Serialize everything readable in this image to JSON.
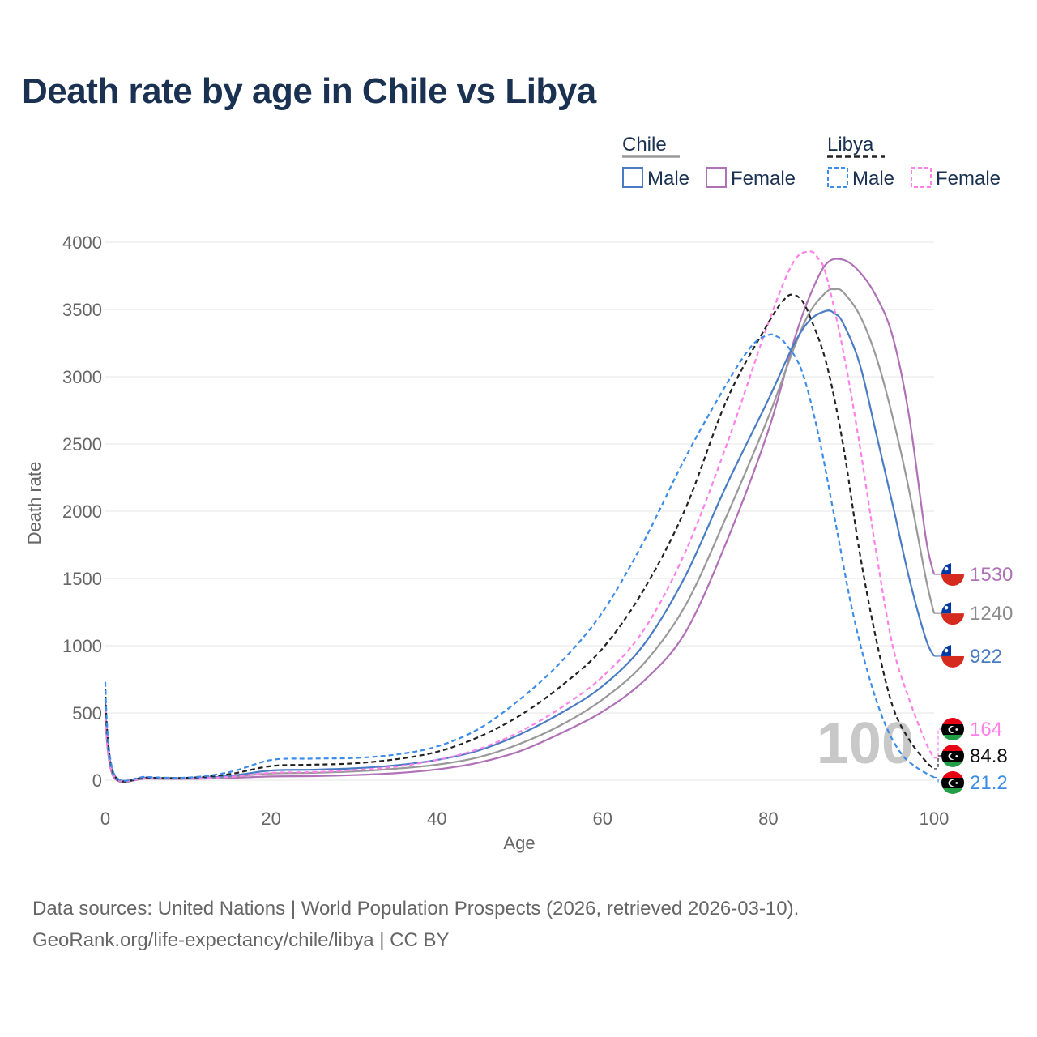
{
  "title": "Death rate by age in Chile vs Libya",
  "source_line1": "Data sources: United Nations | World Population Prospects (2026, retrieved 2026-03-10).",
  "source_line2": "GeoRank.org/life-expectancy/chile/libya | CC BY",
  "colors": {
    "chile_male": "#4a7cc4",
    "chile_female": "#b071b6",
    "chile_total": "#999999",
    "libya_male": "#3d8ce8",
    "libya_female": "#ff80e8",
    "libya_total": "#222222",
    "title": "#1a3152"
  },
  "legend": {
    "groups": [
      {
        "country": "Chile",
        "dash": "solid",
        "total_color": "#999999",
        "items": [
          {
            "label": "Male",
            "color": "#4a7cc4"
          },
          {
            "label": "Female",
            "color": "#b071b6"
          }
        ]
      },
      {
        "country": "Libya",
        "dash": "dashed",
        "total_color": "#222222",
        "items": [
          {
            "label": "Male",
            "color": "#3d8ce8"
          },
          {
            "label": "Female",
            "color": "#ff80e8"
          }
        ]
      }
    ]
  },
  "chart_data": {
    "type": "line",
    "title": "Death rate by age in Chile vs Libya",
    "xlabel": "Age",
    "ylabel": "Death rate",
    "xlim": [
      0,
      100
    ],
    "ylim": [
      0,
      4000
    ],
    "xticks": [
      0,
      20,
      40,
      60,
      80,
      100
    ],
    "yticks": [
      0,
      500,
      1000,
      1500,
      2000,
      2500,
      3000,
      3500,
      4000
    ],
    "grid": true,
    "watermark": "100",
    "series": [
      {
        "name": "Chile Female",
        "country": "Chile",
        "sex": "Female",
        "color": "#b071b6",
        "dash": "solid",
        "end_label": "1530",
        "flag": "chile",
        "points": [
          [
            0,
            500
          ],
          [
            1,
            25
          ],
          [
            5,
            12
          ],
          [
            10,
            10
          ],
          [
            15,
            16
          ],
          [
            20,
            28
          ],
          [
            25,
            30
          ],
          [
            30,
            38
          ],
          [
            35,
            52
          ],
          [
            40,
            80
          ],
          [
            45,
            130
          ],
          [
            50,
            215
          ],
          [
            55,
            350
          ],
          [
            60,
            510
          ],
          [
            65,
            740
          ],
          [
            70,
            1100
          ],
          [
            75,
            1780
          ],
          [
            80,
            2600
          ],
          [
            83,
            3250
          ],
          [
            85,
            3600
          ],
          [
            87,
            3840
          ],
          [
            89,
            3870
          ],
          [
            91,
            3780
          ],
          [
            93,
            3600
          ],
          [
            95,
            3300
          ],
          [
            97,
            2700
          ],
          [
            99,
            1800
          ],
          [
            100,
            1530
          ]
        ]
      },
      {
        "name": "Chile (both)",
        "country": "Chile",
        "sex": "Total",
        "color": "#999999",
        "dash": "solid",
        "end_label": "1240",
        "flag": "chile",
        "points": [
          [
            0,
            550
          ],
          [
            1,
            35
          ],
          [
            5,
            14
          ],
          [
            10,
            12
          ],
          [
            15,
            25
          ],
          [
            20,
            50
          ],
          [
            25,
            55
          ],
          [
            30,
            65
          ],
          [
            35,
            85
          ],
          [
            40,
            115
          ],
          [
            45,
            170
          ],
          [
            50,
            270
          ],
          [
            55,
            410
          ],
          [
            60,
            600
          ],
          [
            65,
            870
          ],
          [
            70,
            1300
          ],
          [
            75,
            1970
          ],
          [
            80,
            2700
          ],
          [
            83,
            3200
          ],
          [
            85,
            3480
          ],
          [
            87,
            3630
          ],
          [
            88,
            3650
          ],
          [
            89,
            3630
          ],
          [
            91,
            3460
          ],
          [
            93,
            3150
          ],
          [
            95,
            2700
          ],
          [
            97,
            2150
          ],
          [
            99,
            1500
          ],
          [
            100,
            1240
          ]
        ]
      },
      {
        "name": "Chile Male",
        "country": "Chile",
        "sex": "Male",
        "color": "#4a7cc4",
        "dash": "solid",
        "end_label": "922",
        "flag": "chile",
        "points": [
          [
            0,
            600
          ],
          [
            1,
            45
          ],
          [
            5,
            18
          ],
          [
            10,
            14
          ],
          [
            15,
            32
          ],
          [
            20,
            72
          ],
          [
            25,
            78
          ],
          [
            30,
            88
          ],
          [
            35,
            110
          ],
          [
            40,
            150
          ],
          [
            45,
            220
          ],
          [
            50,
            340
          ],
          [
            55,
            500
          ],
          [
            60,
            700
          ],
          [
            65,
            1010
          ],
          [
            70,
            1520
          ],
          [
            75,
            2200
          ],
          [
            80,
            2830
          ],
          [
            83,
            3230
          ],
          [
            85,
            3420
          ],
          [
            87,
            3490
          ],
          [
            88,
            3470
          ],
          [
            89,
            3400
          ],
          [
            91,
            3100
          ],
          [
            93,
            2580
          ],
          [
            95,
            2050
          ],
          [
            97,
            1500
          ],
          [
            99,
            1050
          ],
          [
            100,
            922
          ]
        ]
      },
      {
        "name": "Libya Female",
        "country": "Libya",
        "sex": "Female",
        "color": "#ff80e8",
        "dash": "dashed",
        "end_label": "164",
        "flag": "libya",
        "points": [
          [
            0,
            520
          ],
          [
            1,
            35
          ],
          [
            5,
            15
          ],
          [
            10,
            12
          ],
          [
            15,
            25
          ],
          [
            20,
            55
          ],
          [
            25,
            60
          ],
          [
            30,
            75
          ],
          [
            35,
            100
          ],
          [
            40,
            150
          ],
          [
            45,
            230
          ],
          [
            50,
            360
          ],
          [
            55,
            540
          ],
          [
            60,
            770
          ],
          [
            65,
            1120
          ],
          [
            70,
            1700
          ],
          [
            75,
            2500
          ],
          [
            80,
            3400
          ],
          [
            83,
            3850
          ],
          [
            85,
            3930
          ],
          [
            86,
            3880
          ],
          [
            87,
            3750
          ],
          [
            89,
            3200
          ],
          [
            91,
            2500
          ],
          [
            93,
            1700
          ],
          [
            95,
            1000
          ],
          [
            97,
            600
          ],
          [
            99,
            280
          ],
          [
            100,
            164
          ]
        ]
      },
      {
        "name": "Libya (both)",
        "country": "Libya",
        "sex": "Total",
        "color": "#222222",
        "dash": "dashed",
        "end_label": "84.8",
        "flag": "libya",
        "points": [
          [
            0,
            680
          ],
          [
            1,
            45
          ],
          [
            5,
            20
          ],
          [
            10,
            18
          ],
          [
            15,
            45
          ],
          [
            20,
            105
          ],
          [
            25,
            115
          ],
          [
            30,
            125
          ],
          [
            35,
            155
          ],
          [
            40,
            210
          ],
          [
            45,
            320
          ],
          [
            50,
            480
          ],
          [
            55,
            700
          ],
          [
            60,
            980
          ],
          [
            65,
            1420
          ],
          [
            70,
            2020
          ],
          [
            75,
            2830
          ],
          [
            80,
            3400
          ],
          [
            82,
            3580
          ],
          [
            83,
            3610
          ],
          [
            84,
            3570
          ],
          [
            85,
            3450
          ],
          [
            87,
            3100
          ],
          [
            89,
            2500
          ],
          [
            91,
            1700
          ],
          [
            93,
            1050
          ],
          [
            95,
            550
          ],
          [
            97,
            300
          ],
          [
            99,
            140
          ],
          [
            100,
            84.8
          ]
        ]
      },
      {
        "name": "Libya Male",
        "country": "Libya",
        "sex": "Male",
        "color": "#3d8ce8",
        "dash": "dashed",
        "end_label": "21.2",
        "flag": "libya",
        "points": [
          [
            0,
            730
          ],
          [
            1,
            55
          ],
          [
            5,
            25
          ],
          [
            10,
            20
          ],
          [
            15,
            60
          ],
          [
            20,
            150
          ],
          [
            25,
            160
          ],
          [
            30,
            165
          ],
          [
            35,
            190
          ],
          [
            40,
            250
          ],
          [
            45,
            380
          ],
          [
            50,
            600
          ],
          [
            55,
            880
          ],
          [
            60,
            1250
          ],
          [
            65,
            1780
          ],
          [
            70,
            2400
          ],
          [
            75,
            2950
          ],
          [
            78,
            3230
          ],
          [
            80,
            3310
          ],
          [
            81,
            3300
          ],
          [
            82,
            3250
          ],
          [
            84,
            3050
          ],
          [
            86,
            2580
          ],
          [
            88,
            1950
          ],
          [
            90,
            1300
          ],
          [
            92,
            800
          ],
          [
            94,
            430
          ],
          [
            96,
            200
          ],
          [
            98,
            90
          ],
          [
            100,
            21.2
          ]
        ]
      }
    ]
  }
}
